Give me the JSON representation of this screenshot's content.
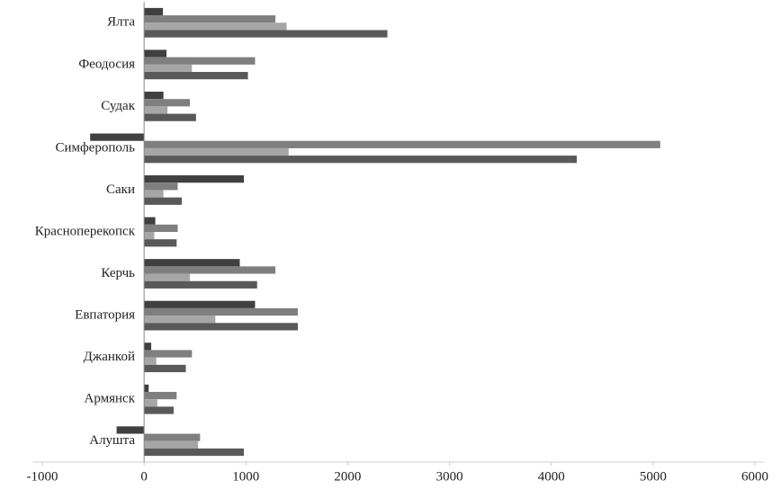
{
  "chart_data": {
    "type": "bar",
    "orientation": "horizontal",
    "categories": [
      "Ялта",
      "Феодосия",
      "Судак",
      "Симферополь",
      "Саки",
      "Красноперекопск",
      "Керчь",
      "Евпатория",
      "Джанкой",
      "Армянск",
      "Алушта"
    ],
    "series": [
      {
        "color": "#404040",
        "values": [
          185,
          220,
          190,
          -530,
          980,
          110,
          940,
          1090,
          70,
          45,
          -270
        ]
      },
      {
        "color": "#7f7f7f",
        "values": [
          1290,
          1090,
          450,
          5070,
          330,
          330,
          1290,
          1510,
          470,
          320,
          550
        ]
      },
      {
        "color": "#a6a6a6",
        "values": [
          1400,
          470,
          230,
          1420,
          190,
          100,
          450,
          700,
          120,
          130,
          530
        ]
      },
      {
        "color": "#595959",
        "values": [
          2390,
          1020,
          510,
          4250,
          370,
          320,
          1110,
          1510,
          410,
          290,
          980
        ]
      }
    ],
    "xlim": [
      -1000,
      6000
    ],
    "xticks": [
      -1000,
      0,
      1000,
      2000,
      3000,
      4000,
      5000,
      6000
    ],
    "grid": false
  }
}
